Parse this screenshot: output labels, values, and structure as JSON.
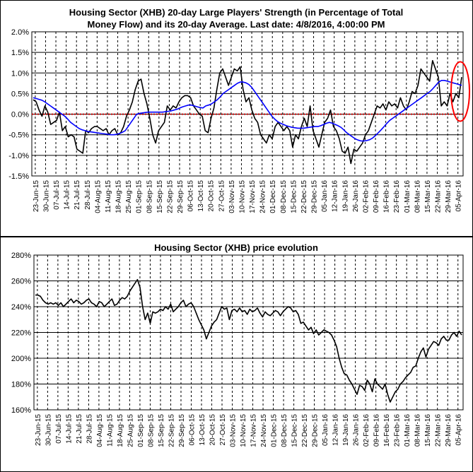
{
  "chart_data": [
    {
      "type": "line",
      "title_line1": "Housing Sector (XHB) 20-day Large Players' Strength (in Percentage of Total",
      "title_line2": "Money Flow) and its 20-day Average. Last date: 4/8/2016, 4:00:00 PM",
      "ylim": [
        -1.5,
        2.0
      ],
      "y_ticks": [
        "2.0%",
        "1.5%",
        "1.0%",
        "0.5%",
        "0.0%",
        "-0.5%",
        "-1.0%",
        "-1.5%"
      ],
      "x_ticks": [
        "23-Jun-15",
        "30-Jun-15",
        "07-Jul-15",
        "14-Jul-15",
        "21-Jul-15",
        "28-Jul-15",
        "04-Aug-15",
        "11-Aug-15",
        "18-Aug-15",
        "25-Aug-15",
        "01-Sep-15",
        "08-Sep-15",
        "15-Sep-15",
        "22-Sep-15",
        "29-Sep-15",
        "06-Oct-15",
        "13-Oct-15",
        "20-Oct-15",
        "27-Oct-15",
        "03-Nov-15",
        "10-Nov-15",
        "17-Nov-15",
        "24-Nov-15",
        "01-Dec-15",
        "08-Dec-15",
        "15-Dec-15",
        "22-Dec-15",
        "29-Dec-15",
        "05-Jan-16",
        "12-Jan-16",
        "19-Jan-16",
        "26-Jan-16",
        "02-Feb-16",
        "09-Feb-16",
        "16-Feb-16",
        "23-Feb-16",
        "01-Mar-16",
        "08-Mar-16",
        "15-Mar-16",
        "22-Mar-16",
        "29-Mar-16",
        "05-Apr-16"
      ],
      "grid": true,
      "annotation": "red ellipse around latest values",
      "colors": {
        "strength": "#000000",
        "average": "#0000ff",
        "zero_line": "#cc0000",
        "highlight": "#ff0000"
      },
      "series": [
        {
          "values": [
            0.35,
            0.3,
            0.1,
            -0.05,
            0.2,
            0.05,
            -0.25,
            -0.2,
            -0.15,
            0.05,
            -0.4,
            -0.3,
            -0.55,
            -0.5,
            -0.55,
            -0.85,
            -0.9,
            -0.95,
            -0.4,
            -0.45,
            -0.35,
            -0.3,
            -0.3,
            -0.35,
            -0.4,
            -0.35,
            -0.5,
            -0.4,
            -0.35,
            -0.5,
            -0.45,
            -0.3,
            -0.05,
            0.1,
            0.3,
            0.6,
            0.8,
            0.85,
            0.5,
            0.25,
            -0.1,
            -0.5,
            -0.7,
            -0.4,
            -0.3,
            -0.2,
            0.2,
            0.1,
            0.2,
            0.15,
            0.3,
            0.4,
            0.45,
            0.45,
            0.4,
            0.2,
            0.1,
            0.0,
            -0.05,
            -0.4,
            -0.45,
            -0.1,
            0.15,
            0.6,
            1.0,
            1.1,
            0.9,
            0.7,
            0.9,
            1.1,
            1.05,
            1.15,
            0.6,
            0.3,
            0.4,
            0.1,
            -0.1,
            -0.2,
            -0.5,
            -0.6,
            -0.7,
            -0.5,
            -0.6,
            -0.3,
            -0.2,
            -0.3,
            -0.4,
            -0.3,
            -0.4,
            -0.8,
            -0.5,
            -0.6,
            -0.3,
            -0.1,
            -0.3,
            0.2,
            -0.4,
            -0.6,
            -0.8,
            -0.5,
            -0.2,
            -0.1,
            0.1,
            -0.3,
            -0.4,
            -0.6,
            -0.9,
            -0.95,
            -0.8,
            -1.2,
            -0.85,
            -0.9,
            -0.8,
            -0.7,
            -0.5,
            -0.4,
            -0.2,
            0.0,
            0.2,
            0.15,
            0.25,
            0.1,
            0.3,
            0.2,
            0.25,
            0.15,
            0.4,
            0.2,
            0.1,
            0.3,
            0.55,
            0.5,
            0.7,
            1.1,
            1.0,
            0.9,
            0.8,
            1.3,
            1.1,
            0.9,
            0.2,
            0.3,
            0.2,
            0.5,
            0.3,
            0.5,
            0.4,
            0.9
          ]
        },
        {
          "values": [
            0.4,
            0.38,
            0.36,
            0.34,
            0.3,
            0.25,
            0.2,
            0.15,
            0.1,
            0.05,
            0.0,
            -0.05,
            -0.12,
            -0.2,
            -0.25,
            -0.3,
            -0.35,
            -0.38,
            -0.4,
            -0.42,
            -0.43,
            -0.44,
            -0.45,
            -0.46,
            -0.47,
            -0.48,
            -0.49,
            -0.5,
            -0.5,
            -0.49,
            -0.47,
            -0.44,
            -0.4,
            -0.3,
            -0.2,
            -0.1,
            0.0,
            0.02,
            0.03,
            0.04,
            0.05,
            0.05,
            0.05,
            0.05,
            0.05,
            0.05,
            0.06,
            0.07,
            0.08,
            0.1,
            0.12,
            0.15,
            0.18,
            0.2,
            0.22,
            0.22,
            0.2,
            0.18,
            0.16,
            0.15,
            0.2,
            0.22,
            0.25,
            0.3,
            0.35,
            0.42,
            0.5,
            0.55,
            0.6,
            0.65,
            0.7,
            0.75,
            0.78,
            0.78,
            0.76,
            0.72,
            0.65,
            0.55,
            0.45,
            0.35,
            0.25,
            0.15,
            0.05,
            -0.05,
            -0.12,
            -0.18,
            -0.22,
            -0.25,
            -0.28,
            -0.3,
            -0.32,
            -0.33,
            -0.34,
            -0.34,
            -0.34,
            -0.33,
            -0.32,
            -0.31,
            -0.3,
            -0.3,
            -0.28,
            -0.25,
            -0.22,
            -0.2,
            -0.22,
            -0.25,
            -0.28,
            -0.32,
            -0.38,
            -0.45,
            -0.5,
            -0.55,
            -0.6,
            -0.63,
            -0.65,
            -0.65,
            -0.64,
            -0.62,
            -0.58,
            -0.52,
            -0.45,
            -0.38,
            -0.3,
            -0.22,
            -0.15,
            -0.1,
            -0.05,
            0.0,
            0.05,
            0.1,
            0.15,
            0.2,
            0.25,
            0.3,
            0.35,
            0.4,
            0.45,
            0.5,
            0.55,
            0.62,
            0.7,
            0.78,
            0.82,
            0.82,
            0.8,
            0.78,
            0.76,
            0.74,
            0.72,
            0.7
          ]
        }
      ]
    },
    {
      "type": "line",
      "title": "Housing Sector (XHB) price evolution",
      "ylim": [
        160,
        280
      ],
      "y_ticks": [
        "280%",
        "260%",
        "240%",
        "220%",
        "200%",
        "180%",
        "160%"
      ],
      "x_ticks": [
        "23-Jun-15",
        "30-Jun-15",
        "07-Jul-15",
        "14-Jul-15",
        "21-Jul-15",
        "28-Jul-15",
        "04-Aug-15",
        "11-Aug-15",
        "18-Aug-15",
        "25-Aug-15",
        "01-Sep-15",
        "08-Sep-15",
        "15-Sep-15",
        "22-Sep-15",
        "29-Sep-15",
        "06-Oct-15",
        "13-Oct-15",
        "20-Oct-15",
        "27-Oct-15",
        "03-Nov-15",
        "10-Nov-15",
        "17-Nov-15",
        "24-Nov-15",
        "01-Dec-15",
        "08-Dec-15",
        "15-Dec-15",
        "22-Dec-15",
        "29-Dec-15",
        "05-Jan-16",
        "12-Jan-16",
        "19-Jan-16",
        "26-Jan-16",
        "02-Feb-16",
        "09-Feb-16",
        "16-Feb-16",
        "23-Feb-16",
        "01-Mar-16",
        "08-Mar-16",
        "15-Mar-16",
        "22-Mar-16",
        "29-Mar-16",
        "05-Apr-16"
      ],
      "grid": true,
      "colors": {
        "price": "#000000"
      },
      "series": [
        {
          "values": [
            249,
            249,
            248,
            245,
            243,
            242,
            243,
            242,
            243,
            241,
            243,
            240,
            242,
            244,
            246,
            243,
            245,
            244,
            242,
            243,
            245,
            246,
            243,
            242,
            240,
            244,
            243,
            240,
            242,
            244,
            246,
            241,
            242,
            245,
            247,
            246,
            248,
            252,
            255,
            258,
            261,
            255,
            240,
            230,
            235,
            227,
            236,
            235,
            236,
            238,
            237,
            240,
            238,
            242,
            236,
            238,
            240,
            243,
            245,
            240,
            242,
            243,
            240,
            235,
            230,
            226,
            222,
            215,
            220,
            225,
            228,
            230,
            235,
            240,
            238,
            239,
            230,
            237,
            238,
            236,
            239,
            236,
            237,
            234,
            238,
            236,
            237,
            239,
            235,
            232,
            236,
            234,
            233,
            235,
            237,
            236,
            233,
            236,
            238,
            240,
            239,
            236,
            237,
            234,
            227,
            228,
            225,
            222,
            224,
            219,
            222,
            218,
            220,
            222,
            221,
            220,
            218,
            214,
            209,
            200,
            193,
            188,
            187,
            183,
            180,
            176,
            172,
            179,
            178,
            175,
            183,
            180,
            174,
            184,
            180,
            178,
            176,
            180,
            172,
            166,
            170,
            174,
            176,
            180,
            182,
            185,
            187,
            189,
            193,
            194,
            200,
            205,
            208,
            201,
            207,
            210,
            213,
            212,
            210,
            215,
            217,
            214,
            214,
            218,
            220,
            217,
            221,
            218
          ]
        }
      ]
    }
  ]
}
